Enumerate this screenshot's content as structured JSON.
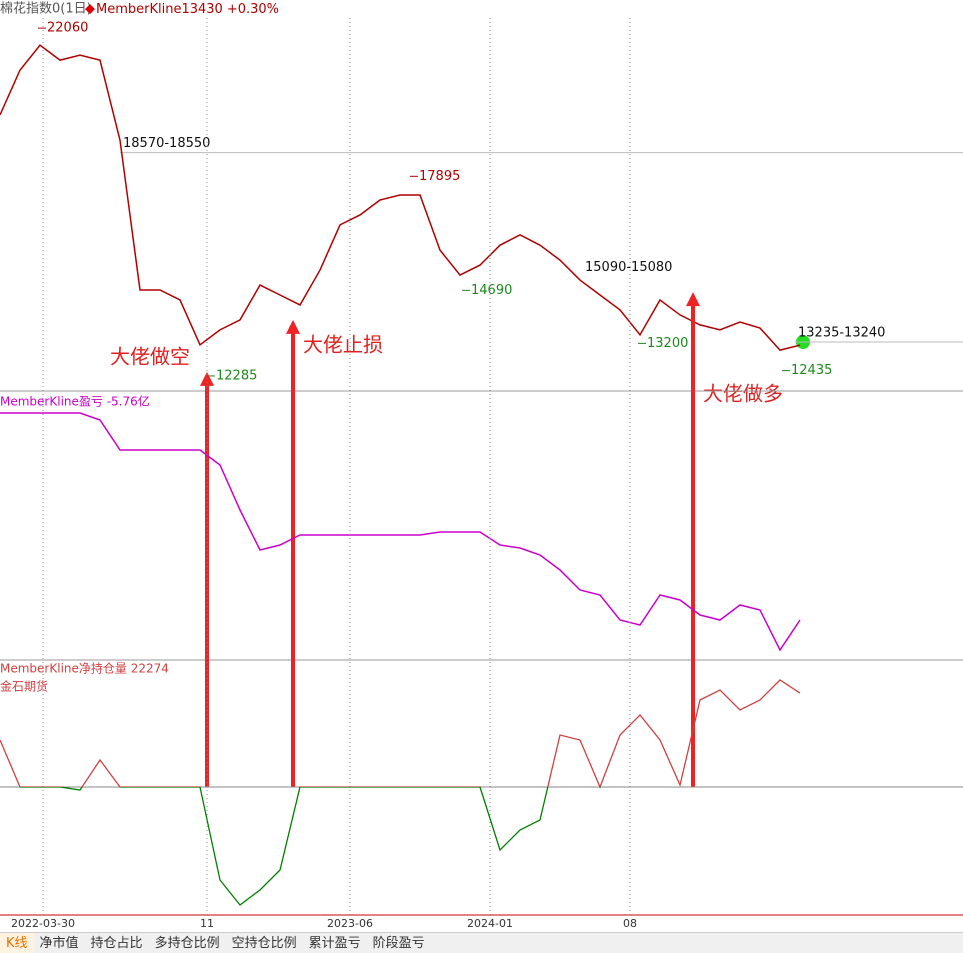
{
  "header": {
    "instrument": "棉花指数0(1日)",
    "series_name": "MemberKline",
    "price": 13430,
    "change": "+0.30%"
  },
  "chart_data": [
    {
      "type": "line",
      "color": "#b00000",
      "xlim": [
        0,
        963
      ],
      "ylim": [
        11890,
        22850
      ],
      "x": [
        0,
        20,
        40,
        60,
        80,
        100,
        120,
        140,
        160,
        180,
        200,
        220,
        240,
        260,
        280,
        300,
        320,
        340,
        360,
        380,
        400,
        420,
        440,
        460,
        480,
        500,
        520,
        540,
        560,
        580,
        600,
        620,
        640,
        660,
        680,
        700,
        720,
        740,
        760,
        780,
        800
      ],
      "values": [
        19620,
        20880,
        21580,
        21160,
        21300,
        21160,
        18910,
        14700,
        14700,
        14420,
        13160,
        13580,
        13860,
        14840,
        14560,
        14280,
        15260,
        16530,
        16810,
        17230,
        17370,
        17370,
        15820,
        15120,
        15400,
        15960,
        16250,
        15960,
        15540,
        14980,
        14560,
        14140,
        13440,
        14420,
        14000,
        13720,
        13580,
        13800,
        13630,
        13010,
        13150
      ],
      "point_labels": [
        {
          "x": 38,
          "value": 22060,
          "color": "#b00000"
        },
        {
          "x": 410,
          "value": 17895,
          "color": "#b00000"
        },
        {
          "x": 462,
          "value": 14690,
          "color": "#1a8a1a"
        },
        {
          "x": 207,
          "value": 12285,
          "color": "#1a8a1a"
        },
        {
          "x": 638,
          "value": 13200,
          "color": "#1a8a1a"
        },
        {
          "x": 782,
          "value": 12435,
          "color": "#1a8a1a"
        }
      ],
      "level_lines": [
        {
          "x": 120,
          "value": 18560,
          "label": "18570-18550",
          "line": true
        },
        {
          "x": 582,
          "value": 15085,
          "label": "15090-15080",
          "line": false
        },
        {
          "x": 795,
          "value": 13238,
          "label": "13235-13240",
          "line": true
        }
      ],
      "arrows": [
        {
          "x": 207,
          "value": 12400,
          "label": "大佬做空"
        },
        {
          "x": 293,
          "value": 13860,
          "label": "大佬止损"
        },
        {
          "x": 693,
          "value": 14640,
          "label": "大佬做多"
        }
      ]
    },
    {
      "type": "line",
      "title": "MemberKline盈亏 -5.76亿",
      "color": "#cc00cc",
      "xlim": [
        0,
        963
      ],
      "ylim": [
        -7.76,
        5.64
      ],
      "x": [
        0,
        20,
        40,
        60,
        80,
        100,
        120,
        140,
        160,
        180,
        200,
        220,
        240,
        260,
        280,
        300,
        320,
        340,
        360,
        380,
        400,
        420,
        440,
        460,
        480,
        500,
        520,
        540,
        560,
        580,
        600,
        620,
        640,
        660,
        680,
        700,
        720,
        740,
        760,
        780,
        800
      ],
      "values": [
        4.59,
        4.59,
        4.59,
        4.59,
        4.59,
        4.24,
        2.74,
        2.74,
        2.74,
        2.74,
        2.74,
        1.99,
        -0.26,
        -2.26,
        -2.01,
        -1.51,
        -1.51,
        -1.51,
        -1.51,
        -1.51,
        -1.51,
        -1.51,
        -1.36,
        -1.36,
        -1.36,
        -2.01,
        -2.16,
        -2.51,
        -3.26,
        -4.26,
        -4.51,
        -5.76,
        -6.01,
        -4.51,
        -4.76,
        -5.51,
        -5.76,
        -5.01,
        -5.26,
        -7.26,
        -5.76
      ]
    },
    {
      "type": "line",
      "title": "MemberKline净持仓量 22274",
      "subtitle": "金石期货",
      "color": "#d04040",
      "neg_color": "#008000",
      "xlim": [
        0,
        963
      ],
      "ylim": [
        -30340,
        30100
      ],
      "xticks": [
        {
          "value": 43,
          "label": "2022-03-30"
        },
        {
          "value": 207,
          "label": "11"
        },
        {
          "value": 350,
          "label": "2023-06"
        },
        {
          "value": 490,
          "label": "2024-01"
        },
        {
          "value": 630,
          "label": "08"
        }
      ],
      "x": [
        0,
        20,
        40,
        60,
        80,
        100,
        120,
        140,
        160,
        180,
        200,
        220,
        240,
        260,
        280,
        300,
        320,
        340,
        360,
        380,
        400,
        420,
        440,
        460,
        480,
        500,
        520,
        540,
        560,
        580,
        600,
        620,
        640,
        660,
        680,
        700,
        720,
        740,
        760,
        780,
        800
      ],
      "values": [
        11140,
        0,
        0,
        0,
        -710,
        6400,
        0,
        0,
        0,
        0,
        0,
        -22040,
        -27970,
        -24410,
        -19670,
        0,
        0,
        0,
        0,
        0,
        0,
        0,
        0,
        0,
        0,
        -14930,
        -10190,
        -7820,
        12320,
        11140,
        0,
        12320,
        17060,
        11140,
        470,
        20620,
        22990,
        18250,
        20620,
        25360,
        22274
      ]
    }
  ],
  "tabs": [
    "K线",
    "净市值",
    "持仓占比",
    "多持仓比例",
    "空持仓比例",
    "累计盈亏",
    "阶段盈亏"
  ]
}
